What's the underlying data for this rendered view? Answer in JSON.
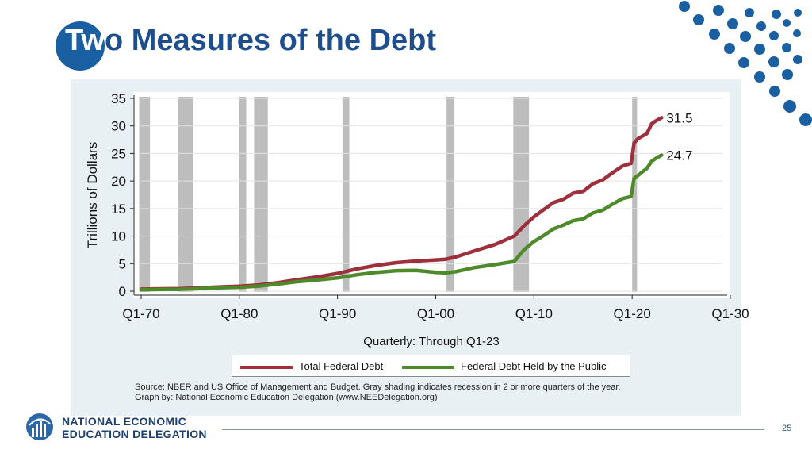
{
  "slide": {
    "title_part1": "Tw",
    "title_part2": "o Measures of the Debt",
    "page_number": "25",
    "logo_line1": "NATIONAL ECONOMIC",
    "logo_line2": "EDUCATION DELEGATION",
    "source_line1": "Source: NBER and US Office of Management and Budget. Gray shading indicates recession in 2 or more quarters of the year.",
    "source_line2": "Graph by: National Economic Education Delegation (www.NEEDelegation.org)",
    "colors": {
      "title": "#1f4e8c",
      "accent": "#1b5fa3",
      "total_debt": "#9e2f3c",
      "public_debt": "#4f8a2a",
      "recession": "#bdbdbd"
    }
  },
  "chart_data": {
    "type": "line",
    "title": "",
    "xlabel": "Quarterly: Through Q1-23",
    "ylabel": "Trillions of Dollars",
    "xlim": [
      1970,
      2030
    ],
    "ylim": [
      0,
      35
    ],
    "x_ticks": [
      1970,
      1980,
      1990,
      2000,
      2010,
      2020,
      2030
    ],
    "x_tick_labels": [
      "Q1-70",
      "Q1-80",
      "Q1-90",
      "Q1-00",
      "Q1-10",
      "Q1-20",
      "Q1-30"
    ],
    "y_ticks": [
      0,
      5,
      10,
      15,
      20,
      25,
      30,
      35
    ],
    "y_tick_labels": [
      "0",
      "5",
      "10",
      "15",
      "20",
      "25",
      "30",
      "35"
    ],
    "grid": true,
    "legend_position": "bottom",
    "recessions": [
      [
        1969.8,
        1970.9
      ],
      [
        1973.8,
        1975.3
      ],
      [
        1980.0,
        1980.7
      ],
      [
        1981.5,
        1982.9
      ],
      [
        1990.5,
        1991.2
      ],
      [
        2001.1,
        2001.9
      ],
      [
        2007.9,
        2009.5
      ],
      [
        2020.0,
        2020.5
      ]
    ],
    "series": [
      {
        "name": "Total Federal Debt",
        "color": "#9e2f3c",
        "end_label": "31.5",
        "x": [
          1970,
          1972,
          1974,
          1976,
          1978,
          1980,
          1982,
          1984,
          1986,
          1988,
          1990,
          1992,
          1994,
          1996,
          1998,
          2000,
          2001,
          2002,
          2004,
          2006,
          2008,
          2009,
          2010,
          2011,
          2012,
          2013,
          2014,
          2015,
          2016,
          2017,
          2018,
          2019,
          2019.9,
          2020.2,
          2020.6,
          2021,
          2021.5,
          2022,
          2022.5,
          2023
        ],
        "values": [
          0.38,
          0.43,
          0.48,
          0.62,
          0.78,
          0.91,
          1.14,
          1.57,
          2.12,
          2.6,
          3.23,
          4.06,
          4.69,
          5.18,
          5.48,
          5.67,
          5.8,
          6.2,
          7.35,
          8.45,
          9.99,
          11.9,
          13.5,
          14.8,
          16.1,
          16.7,
          17.8,
          18.1,
          19.5,
          20.2,
          21.5,
          22.7,
          23.2,
          26.9,
          27.7,
          28.1,
          28.6,
          30.4,
          31.0,
          31.5
        ]
      },
      {
        "name": "Federal Debt Held by the Public",
        "color": "#4f8a2a",
        "end_label": "24.7",
        "x": [
          1970,
          1972,
          1974,
          1976,
          1978,
          1980,
          1982,
          1984,
          1986,
          1988,
          1990,
          1992,
          1994,
          1996,
          1998,
          2000,
          2001,
          2002,
          2004,
          2006,
          2008,
          2009,
          2010,
          2011,
          2012,
          2013,
          2014,
          2015,
          2016,
          2017,
          2018,
          2019,
          2019.9,
          2020.2,
          2020.6,
          2021,
          2021.5,
          2022,
          2022.5,
          2023
        ],
        "values": [
          0.28,
          0.32,
          0.34,
          0.48,
          0.62,
          0.71,
          0.92,
          1.31,
          1.74,
          2.05,
          2.41,
          3.0,
          3.43,
          3.73,
          3.77,
          3.41,
          3.32,
          3.54,
          4.3,
          4.83,
          5.4,
          7.55,
          9.02,
          10.1,
          11.3,
          12.0,
          12.8,
          13.1,
          14.2,
          14.7,
          15.8,
          16.8,
          17.2,
          20.5,
          21.0,
          21.6,
          22.3,
          23.6,
          24.2,
          24.7
        ]
      }
    ]
  }
}
